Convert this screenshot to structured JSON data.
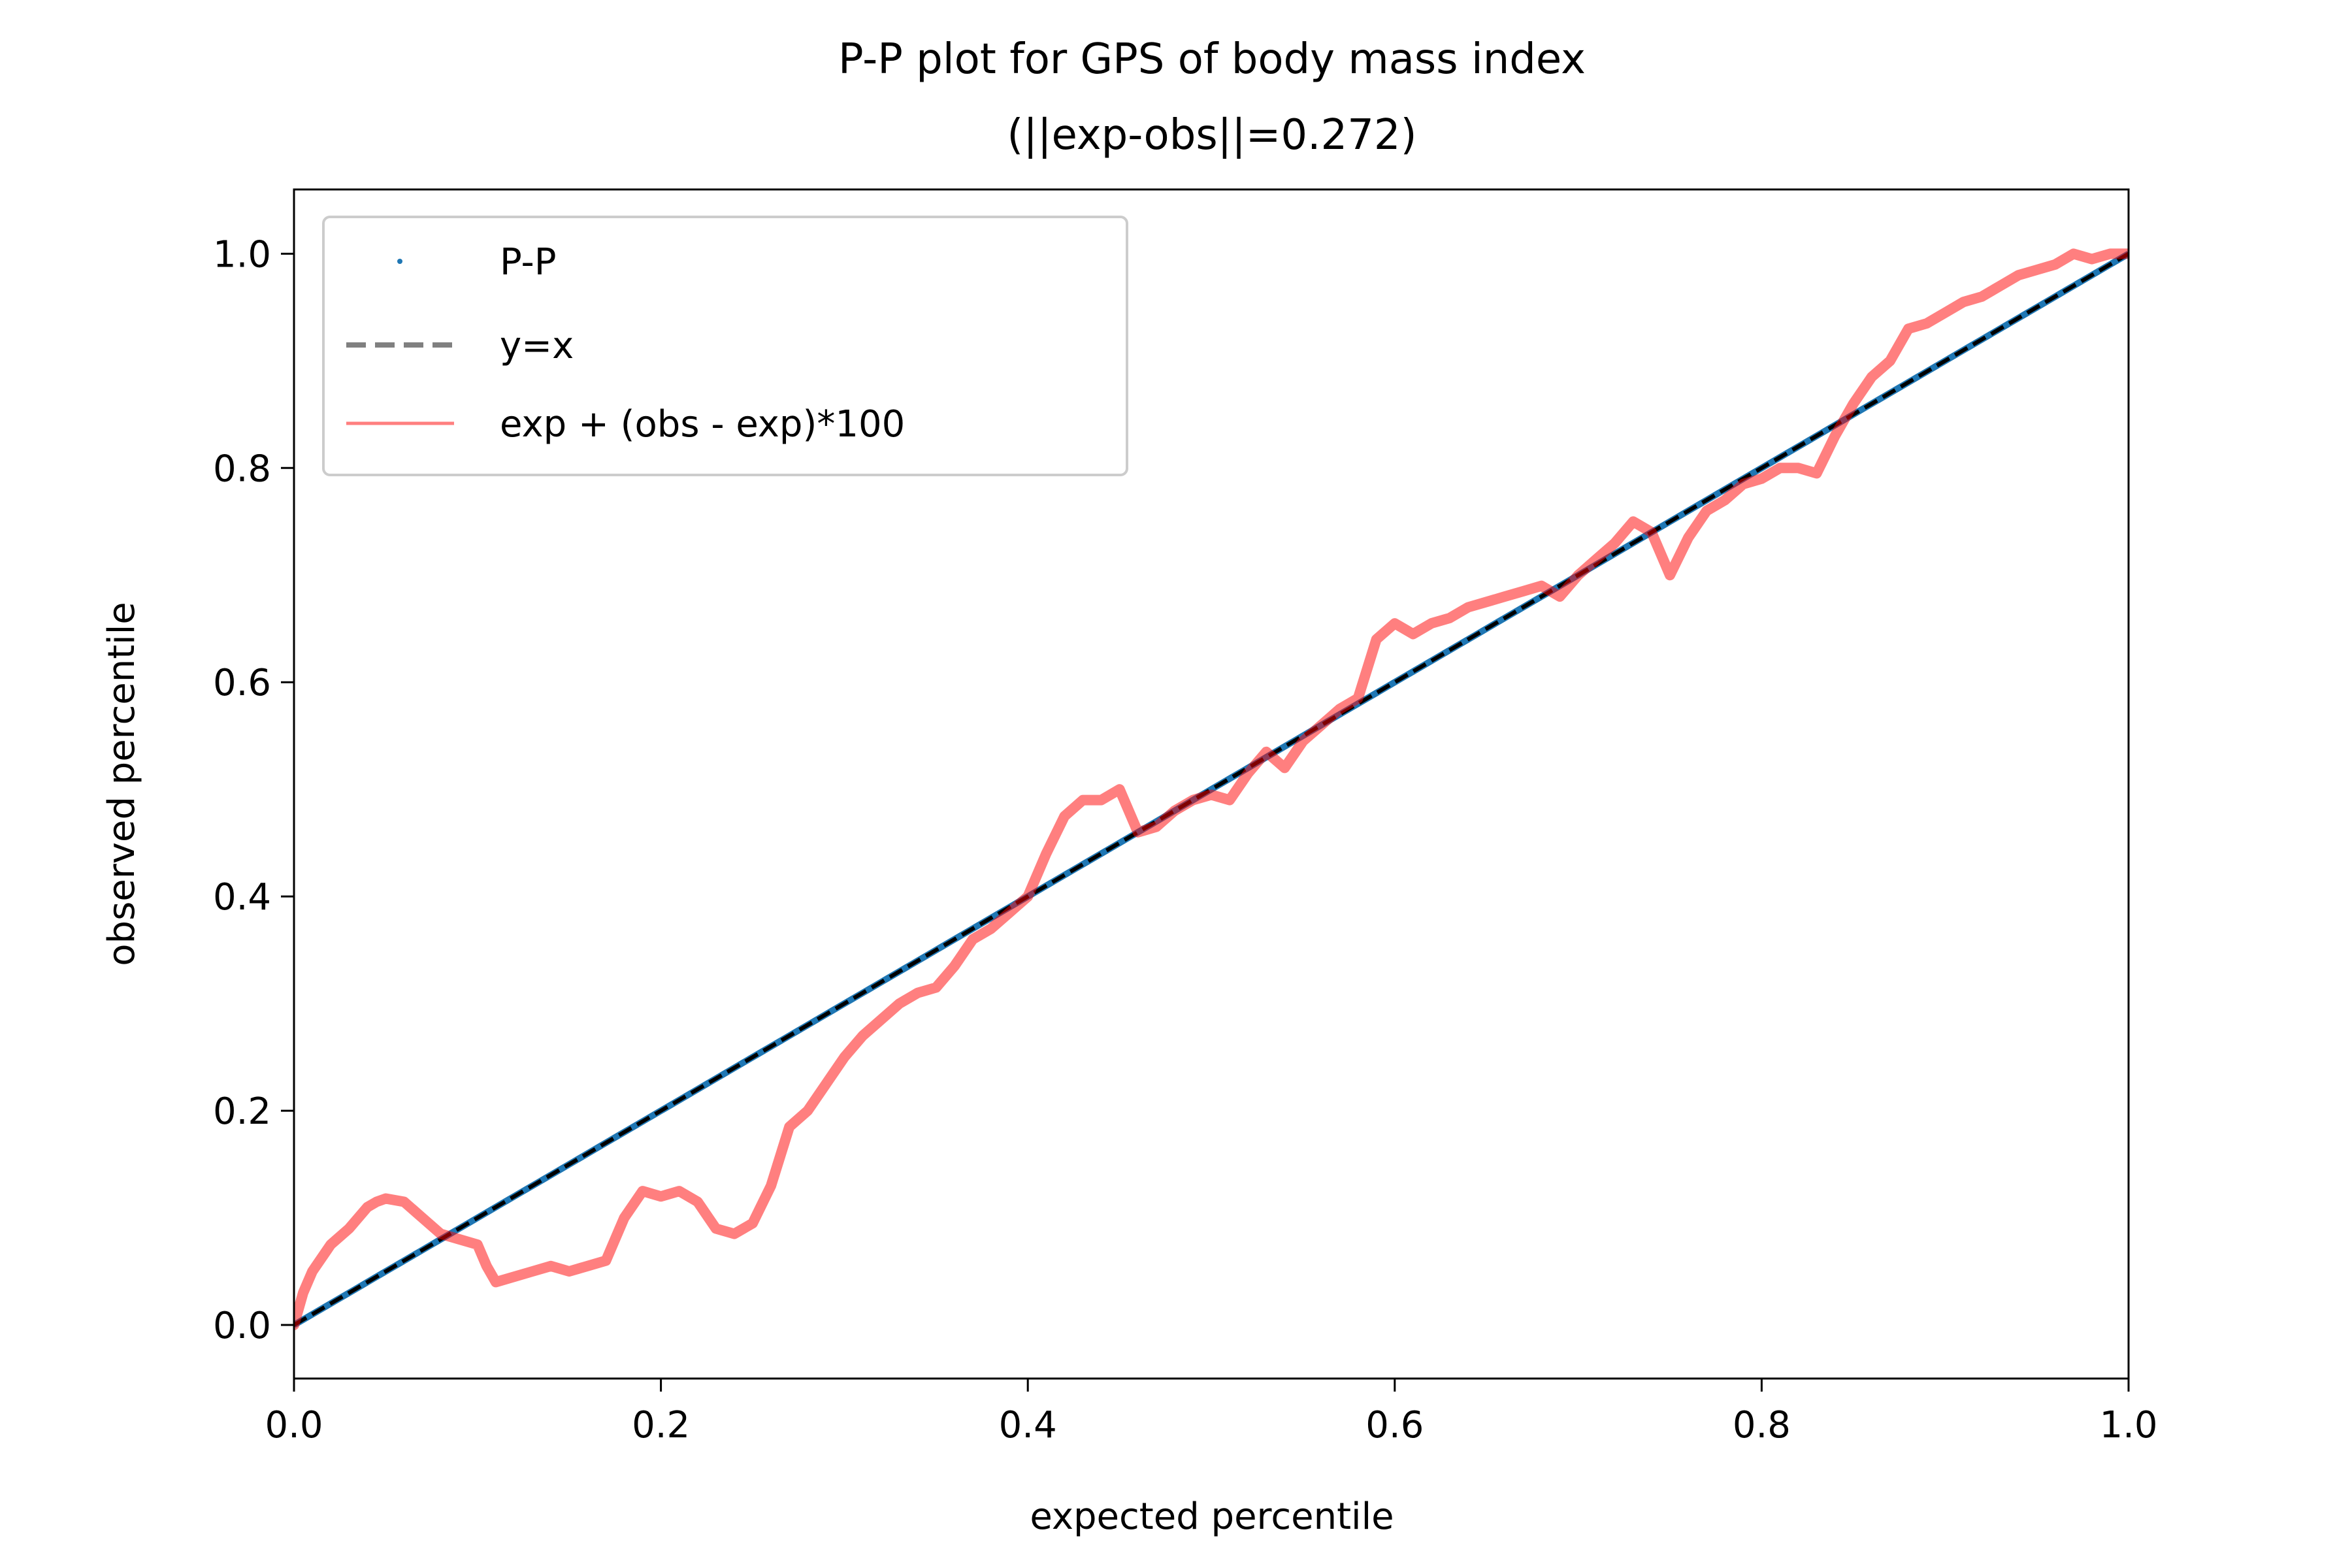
{
  "chart_data": {
    "type": "line",
    "title": "P-P plot for GPS of body mass index",
    "subtitle": "(||exp-obs||=0.272)",
    "xlabel": "expected percentile",
    "ylabel": "observed percentile",
    "xlim": [
      0.0,
      1.0
    ],
    "ylim": [
      -0.05,
      1.06
    ],
    "xticks": [
      {
        "value": 0.0,
        "label": "0.0"
      },
      {
        "value": 0.2,
        "label": "0.2"
      },
      {
        "value": 0.4,
        "label": "0.4"
      },
      {
        "value": 0.6,
        "label": "0.6"
      },
      {
        "value": 0.8,
        "label": "0.8"
      },
      {
        "value": 1.0,
        "label": "1.0"
      }
    ],
    "yticks": [
      {
        "value": 0.0,
        "label": "0.0"
      },
      {
        "value": 0.2,
        "label": "0.2"
      },
      {
        "value": 0.4,
        "label": "0.4"
      },
      {
        "value": 0.6,
        "label": "0.6"
      },
      {
        "value": 0.8,
        "label": "0.8"
      },
      {
        "value": 1.0,
        "label": "1.0"
      }
    ],
    "grid": false,
    "legend_position": "top-left",
    "series": [
      {
        "name": "P-P",
        "style": "dots",
        "color": "#1f77b4",
        "x": [
          0.0,
          1.0
        ],
        "y": [
          0.0,
          1.0
        ]
      },
      {
        "name": "y=x",
        "style": "dashed",
        "color": "#000000",
        "legend_color": "#808080",
        "x": [
          0.0,
          1.0
        ],
        "y": [
          0.0,
          1.0
        ]
      },
      {
        "name": "exp + (obs - exp)*100",
        "style": "line",
        "color": "#ff0000",
        "opacity": 0.5,
        "x": [
          0.0,
          0.005,
          0.01,
          0.02,
          0.03,
          0.04,
          0.045,
          0.05,
          0.06,
          0.07,
          0.08,
          0.09,
          0.1,
          0.105,
          0.11,
          0.12,
          0.13,
          0.14,
          0.15,
          0.16,
          0.17,
          0.18,
          0.19,
          0.2,
          0.21,
          0.22,
          0.23,
          0.24,
          0.25,
          0.26,
          0.27,
          0.28,
          0.29,
          0.3,
          0.31,
          0.32,
          0.33,
          0.34,
          0.35,
          0.36,
          0.37,
          0.38,
          0.39,
          0.4,
          0.41,
          0.42,
          0.43,
          0.44,
          0.45,
          0.46,
          0.47,
          0.48,
          0.49,
          0.5,
          0.51,
          0.52,
          0.53,
          0.54,
          0.55,
          0.56,
          0.57,
          0.58,
          0.59,
          0.6,
          0.61,
          0.62,
          0.63,
          0.64,
          0.65,
          0.66,
          0.67,
          0.68,
          0.69,
          0.7,
          0.71,
          0.72,
          0.73,
          0.74,
          0.75,
          0.76,
          0.77,
          0.78,
          0.79,
          0.8,
          0.81,
          0.82,
          0.83,
          0.84,
          0.85,
          0.86,
          0.87,
          0.88,
          0.89,
          0.9,
          0.91,
          0.92,
          0.93,
          0.94,
          0.95,
          0.96,
          0.97,
          0.98,
          0.99,
          1.0
        ],
        "y": [
          0.0,
          0.03,
          0.05,
          0.075,
          0.09,
          0.11,
          0.115,
          0.118,
          0.115,
          0.1,
          0.085,
          0.08,
          0.075,
          0.055,
          0.04,
          0.045,
          0.05,
          0.055,
          0.05,
          0.055,
          0.06,
          0.1,
          0.125,
          0.12,
          0.125,
          0.115,
          0.09,
          0.085,
          0.095,
          0.13,
          0.185,
          0.2,
          0.225,
          0.25,
          0.27,
          0.285,
          0.3,
          0.31,
          0.315,
          0.335,
          0.36,
          0.37,
          0.385,
          0.4,
          0.44,
          0.475,
          0.49,
          0.49,
          0.5,
          0.46,
          0.465,
          0.48,
          0.49,
          0.495,
          0.49,
          0.515,
          0.535,
          0.52,
          0.545,
          0.56,
          0.575,
          0.585,
          0.64,
          0.655,
          0.645,
          0.655,
          0.66,
          0.67,
          0.675,
          0.68,
          0.685,
          0.69,
          0.68,
          0.7,
          0.715,
          0.73,
          0.75,
          0.74,
          0.7,
          0.735,
          0.76,
          0.77,
          0.785,
          0.79,
          0.8,
          0.8,
          0.795,
          0.83,
          0.86,
          0.885,
          0.9,
          0.93,
          0.935,
          0.945,
          0.955,
          0.96,
          0.97,
          0.98,
          0.985,
          0.99,
          1.0,
          0.995,
          1.0,
          1.0
        ]
      }
    ]
  }
}
